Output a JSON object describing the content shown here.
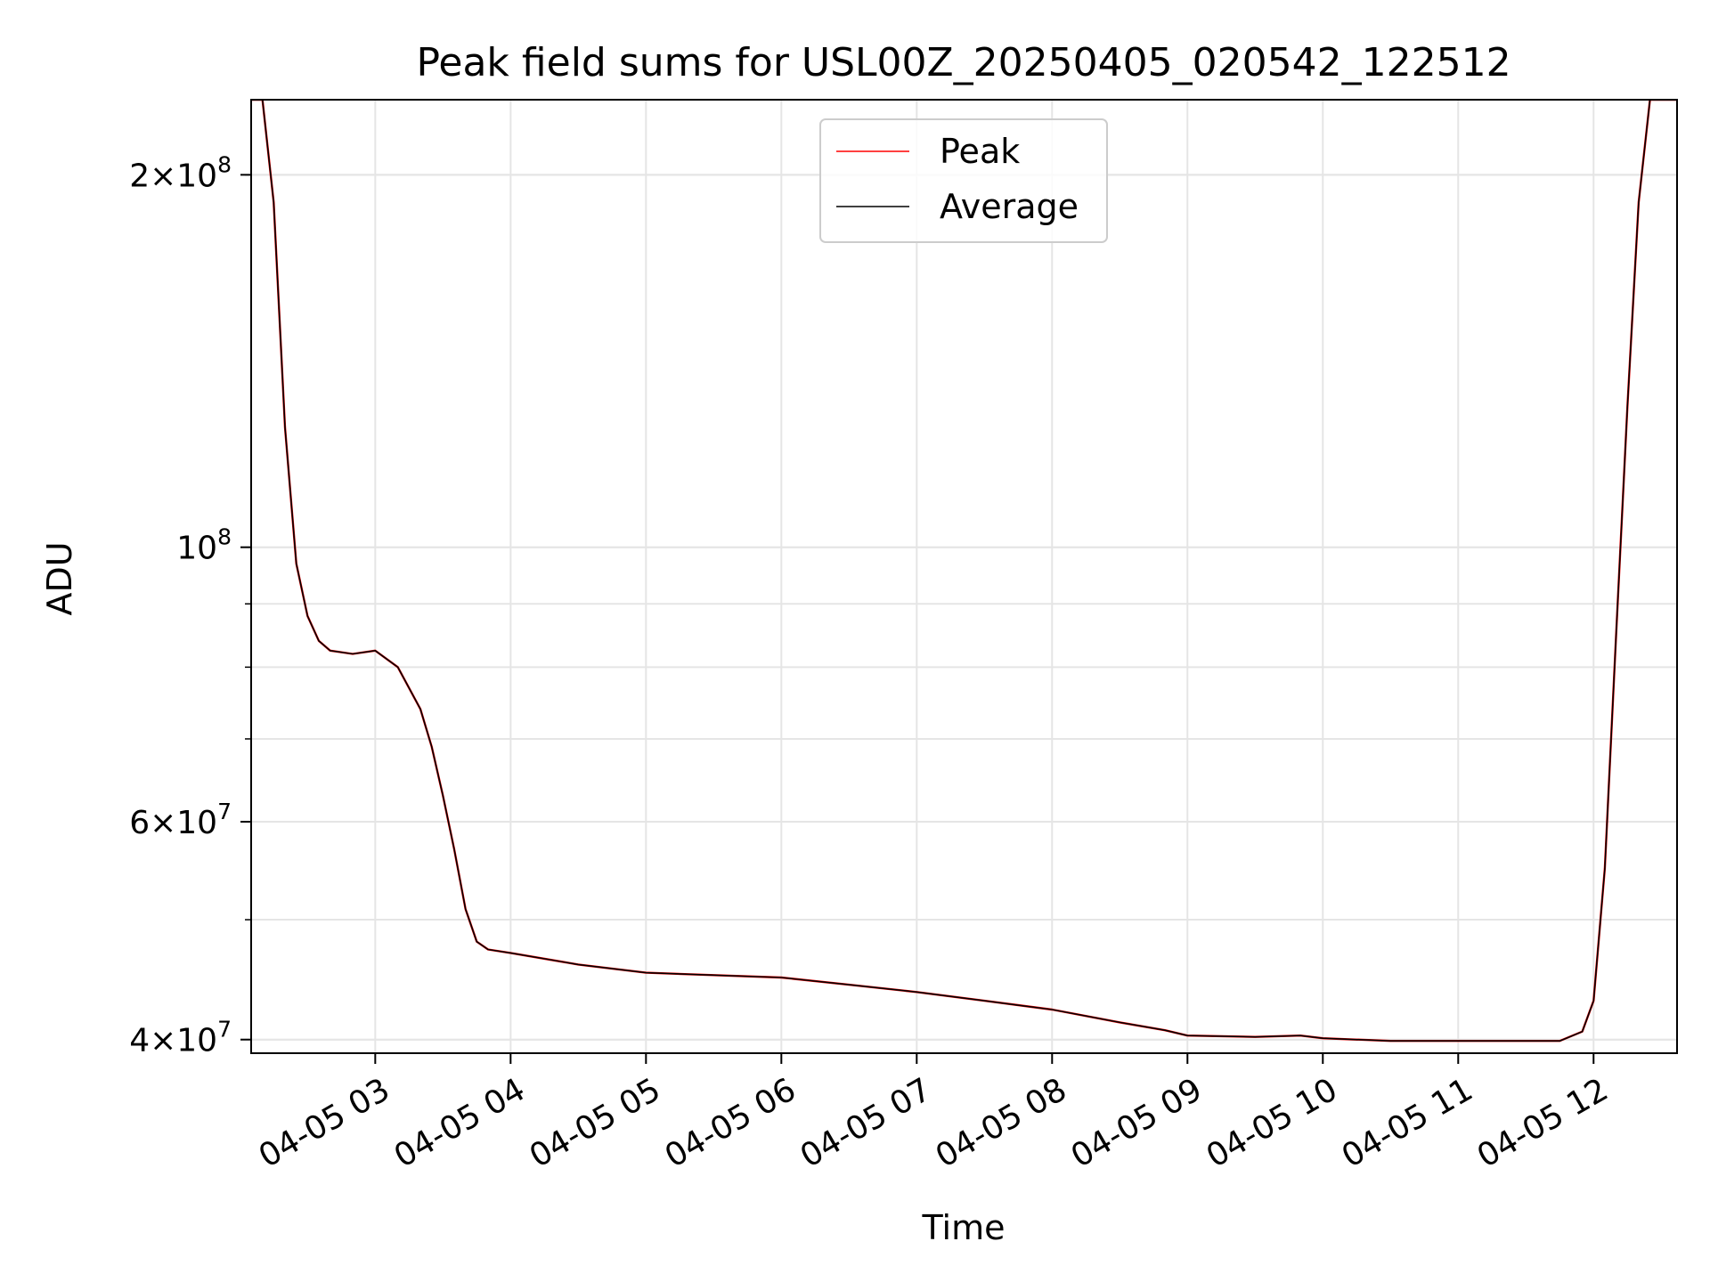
{
  "chart_data": {
    "type": "line",
    "title": "Peak field sums for USL00Z_20250405_020542_122512",
    "xlabel": "Time",
    "ylabel": "ADU",
    "yscale": "log",
    "ylim": [
      39000000,
      230000000
    ],
    "xlim": [
      "04-05 02:05",
      "04-05 12:37"
    ],
    "grid": true,
    "legend_position": "upper-center",
    "x_ticks": [
      "04-05 03",
      "04-05 04",
      "04-05 05",
      "04-05 06",
      "04-05 07",
      "04-05 08",
      "04-05 09",
      "04-05 10",
      "04-05 11",
      "04-05 12"
    ],
    "y_ticks": [
      {
        "value": 40000000,
        "mantissa": "4",
        "exp": "7"
      },
      {
        "value": 60000000,
        "mantissa": "6",
        "exp": "7"
      },
      {
        "value": 100000000,
        "mantissa": "",
        "exp": "8"
      },
      {
        "value": 200000000,
        "mantissa": "2",
        "exp": "8"
      }
    ],
    "series": [
      {
        "name": "Peak",
        "color": "#ff0000",
        "x": [
          "04-05 02:05",
          "04-05 02:10",
          "04-05 02:15",
          "04-05 02:20",
          "04-05 02:25",
          "04-05 02:30",
          "04-05 02:35",
          "04-05 02:40",
          "04-05 02:50",
          "04-05 03:00",
          "04-05 03:10",
          "04-05 03:20",
          "04-05 03:25",
          "04-05 03:30",
          "04-05 03:35",
          "04-05 03:40",
          "04-05 03:45",
          "04-05 03:50",
          "04-05 04:00",
          "04-05 04:30",
          "04-05 05:00",
          "04-05 05:30",
          "04-05 06:00",
          "04-05 06:30",
          "04-05 07:00",
          "04-05 07:30",
          "04-05 08:00",
          "04-05 08:30",
          "04-05 08:50",
          "04-05 09:00",
          "04-05 09:30",
          "04-05 09:50",
          "04-05 10:00",
          "04-05 10:30",
          "04-05 11:00",
          "04-05 11:30",
          "04-05 11:45",
          "04-05 11:55",
          "04-05 12:00",
          "04-05 12:05",
          "04-05 12:10",
          "04-05 12:15",
          "04-05 12:20",
          "04-05 12:25",
          "04-05 12:37"
        ],
        "y": [
          230000000,
          230000000,
          190000000,
          125000000,
          97000000,
          88000000,
          84000000,
          82500000,
          82000000,
          82500000,
          80000000,
          74000000,
          69000000,
          63000000,
          57000000,
          51000000,
          48000000,
          47300000,
          47000000,
          46000000,
          45300000,
          45100000,
          44900000,
          44300000,
          43700000,
          43000000,
          42300000,
          41300000,
          40700000,
          40300000,
          40200000,
          40300000,
          40100000,
          39900000,
          39900000,
          39900000,
          39900000,
          40600000,
          43000000,
          55000000,
          85000000,
          130000000,
          190000000,
          230000000,
          230000000
        ]
      },
      {
        "name": "Average",
        "color": "#000000",
        "x": [
          "04-05 02:05",
          "04-05 02:10",
          "04-05 02:15",
          "04-05 02:20",
          "04-05 02:25",
          "04-05 02:30",
          "04-05 02:35",
          "04-05 02:40",
          "04-05 02:50",
          "04-05 03:00",
          "04-05 03:10",
          "04-05 03:20",
          "04-05 03:25",
          "04-05 03:30",
          "04-05 03:35",
          "04-05 03:40",
          "04-05 03:45",
          "04-05 03:50",
          "04-05 04:00",
          "04-05 04:30",
          "04-05 05:00",
          "04-05 05:30",
          "04-05 06:00",
          "04-05 06:30",
          "04-05 07:00",
          "04-05 07:30",
          "04-05 08:00",
          "04-05 08:30",
          "04-05 08:50",
          "04-05 09:00",
          "04-05 09:30",
          "04-05 09:50",
          "04-05 10:00",
          "04-05 10:30",
          "04-05 11:00",
          "04-05 11:30",
          "04-05 11:45",
          "04-05 11:55",
          "04-05 12:00",
          "04-05 12:05",
          "04-05 12:10",
          "04-05 12:15",
          "04-05 12:20",
          "04-05 12:25",
          "04-05 12:37"
        ],
        "y": [
          230000000,
          230000000,
          190000000,
          125000000,
          97000000,
          88000000,
          84000000,
          82500000,
          82000000,
          82500000,
          80000000,
          74000000,
          69000000,
          63000000,
          57000000,
          51000000,
          48000000,
          47300000,
          47000000,
          46000000,
          45300000,
          45100000,
          44900000,
          44300000,
          43700000,
          43000000,
          42300000,
          41300000,
          40700000,
          40300000,
          40200000,
          40300000,
          40100000,
          39900000,
          39900000,
          39900000,
          39900000,
          40600000,
          43000000,
          55000000,
          85000000,
          130000000,
          190000000,
          230000000,
          230000000
        ]
      }
    ]
  }
}
